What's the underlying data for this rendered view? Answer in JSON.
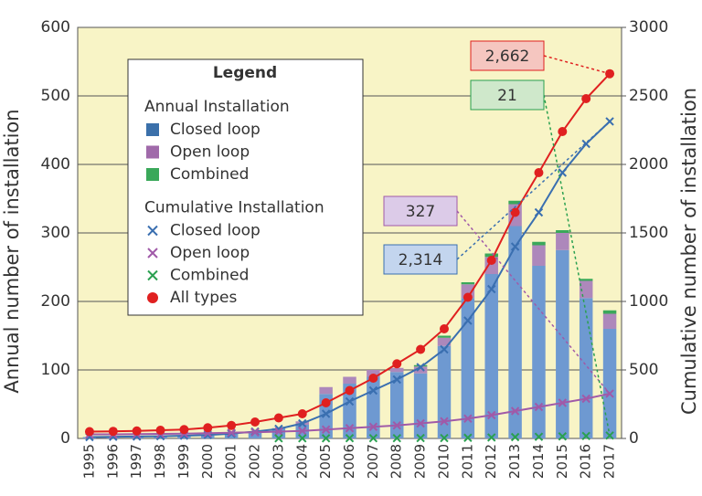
{
  "chart_data": {
    "type": "bar",
    "y_label": "Annual number of installation",
    "y2_label": "Cumulative number of installation",
    "legend_title": "Legend",
    "legend_groups": [
      "Annual Installation",
      "Cumulative Installation"
    ],
    "categories": [
      "1995",
      "1996",
      "1997",
      "1998",
      "1999",
      "2000",
      "2001",
      "2002",
      "2003",
      "2004",
      "2005",
      "2006",
      "2007",
      "2008",
      "2009",
      "2010",
      "2011",
      "2012",
      "2013",
      "2014",
      "2015",
      "2016",
      "2017"
    ],
    "ylim": [
      0,
      600
    ],
    "yticks": [
      0,
      100,
      200,
      300,
      400,
      500,
      600
    ],
    "y2lim": [
      0,
      3000
    ],
    "y2ticks": [
      0,
      500,
      1000,
      1500,
      2000,
      2500,
      3000
    ],
    "grid": true,
    "plot_background": "#f8f4c6",
    "series": [
      {
        "name": "Closed loop",
        "type": "bar",
        "color": "#6e99d1",
        "legend_color": "#3b70aa",
        "values": [
          2,
          2,
          2,
          2,
          3,
          4,
          8,
          10,
          15,
          20,
          65,
          80,
          90,
          97,
          95,
          135,
          205,
          240,
          310,
          252,
          275,
          205,
          160
        ]
      },
      {
        "name": "Open loop",
        "type": "bar",
        "color": "#ad88bb",
        "legend_color": "#a06aaa",
        "values": [
          0,
          0,
          0,
          0,
          0,
          0,
          0,
          0,
          0,
          5,
          10,
          10,
          10,
          6,
          10,
          12,
          20,
          25,
          32,
          30,
          25,
          25,
          22
        ]
      },
      {
        "name": "Combined",
        "type": "bar",
        "color": "#3aa85a",
        "legend_color": "#3aa85a",
        "values": [
          0,
          0,
          0,
          0,
          0,
          0,
          0,
          0,
          0,
          0,
          0,
          0,
          0,
          0,
          2,
          3,
          3,
          5,
          5,
          5,
          4,
          3,
          5
        ]
      },
      {
        "name": "Closed loop",
        "type": "line",
        "axis": "y2",
        "color": "#3a6fb0",
        "marker": "x",
        "line": true,
        "values": [
          10,
          12,
          14,
          16,
          20,
          25,
          35,
          50,
          70,
          110,
          180,
          270,
          350,
          430,
          520,
          650,
          860,
          1090,
          1400,
          1650,
          1940,
          2150,
          2314
        ],
        "value_labels": [
          null,
          null,
          null,
          null,
          null,
          null,
          null,
          null,
          null,
          null,
          null,
          null,
          null,
          null,
          null,
          null,
          null,
          null,
          null,
          null,
          null,
          null,
          "2,314"
        ],
        "label_fill": "#c3d5ee"
      },
      {
        "name": "Open loop",
        "type": "line",
        "axis": "y2",
        "color": "#a05aa8",
        "marker": "x",
        "line": true,
        "values": [
          30,
          30,
          32,
          33,
          35,
          38,
          42,
          45,
          50,
          55,
          65,
          75,
          85,
          95,
          110,
          125,
          145,
          170,
          200,
          230,
          260,
          290,
          327
        ],
        "value_labels": [
          null,
          null,
          null,
          null,
          null,
          null,
          null,
          null,
          null,
          null,
          null,
          null,
          null,
          null,
          null,
          null,
          null,
          null,
          null,
          null,
          null,
          null,
          "327"
        ],
        "label_fill": "#dccbe8"
      },
      {
        "name": "Combined",
        "type": "line",
        "axis": "y2",
        "color": "#2aa050",
        "marker": "x",
        "line": false,
        "values": [
          null,
          null,
          null,
          null,
          null,
          null,
          null,
          null,
          1,
          1,
          1,
          2,
          2,
          2,
          3,
          3,
          5,
          7,
          10,
          12,
          15,
          18,
          21
        ],
        "value_labels": [
          null,
          null,
          null,
          null,
          null,
          null,
          null,
          null,
          null,
          null,
          null,
          null,
          null,
          null,
          null,
          null,
          null,
          null,
          null,
          null,
          null,
          null,
          "21"
        ],
        "label_fill": "#cfe8cb"
      },
      {
        "name": "All types",
        "type": "line",
        "axis": "y2",
        "color": "#e02020",
        "marker": "circle",
        "line": true,
        "values": [
          50,
          52,
          55,
          60,
          65,
          78,
          95,
          120,
          150,
          180,
          260,
          350,
          440,
          545,
          650,
          800,
          1030,
          1300,
          1650,
          1940,
          2240,
          2480,
          2662
        ],
        "value_labels": [
          null,
          null,
          null,
          null,
          null,
          null,
          null,
          null,
          null,
          null,
          null,
          null,
          null,
          null,
          null,
          null,
          null,
          null,
          null,
          null,
          null,
          null,
          "2,662"
        ],
        "label_fill": "#f5c6c0"
      }
    ]
  }
}
